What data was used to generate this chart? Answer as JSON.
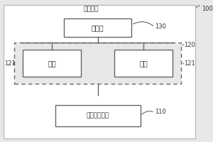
{
  "title": "系统架构",
  "label_100": "100",
  "label_130": "130",
  "label_120": "120",
  "label_121_left": "121",
  "label_121_right": "121",
  "label_110": "110",
  "box_manage": "管理域",
  "box_node1": "节点",
  "box_node2": "节点",
  "box_remote": "远程终端单元",
  "bg_outer": "#e8e8e8",
  "bg_inner": "#f0f0f0",
  "box_fill": "#ffffff",
  "box_edge": "#666666",
  "dashed_fill": "#e8e8e8",
  "dashed_edge": "#666666",
  "text_color": "#333333",
  "line_color": "#666666",
  "outer_edge": "#bbbbbb"
}
